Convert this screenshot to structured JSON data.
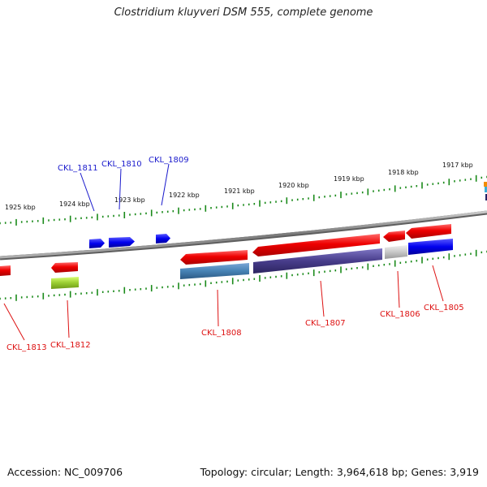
{
  "title": "Clostridium kluyveri DSM 555, complete genome",
  "footer": {
    "accession": "Accession: NC_009706",
    "summary": "Topology: circular; Length: 3,964,618 bp; Genes: 3,919"
  },
  "ruler_labels": [
    "1925 kbp",
    "1924 kbp",
    "1923 kbp",
    "1922 kbp",
    "1921 kbp",
    "1920 kbp",
    "1919 kbp",
    "1918 kbp",
    "1917 kbp"
  ],
  "genes": {
    "forward": [
      "CKL_1811",
      "CKL_1810",
      "CKL_1809"
    ],
    "reverse": [
      "CKL_1813",
      "CKL_1812",
      "CKL_1808",
      "CKL_1807",
      "CKL_1806",
      "CKL_1805"
    ]
  },
  "colors": {
    "forward_strand": "#0000ee",
    "reverse_strand": "#dd0000",
    "ruler_ticks": "#1a8a1a",
    "backbone": "#808080"
  }
}
